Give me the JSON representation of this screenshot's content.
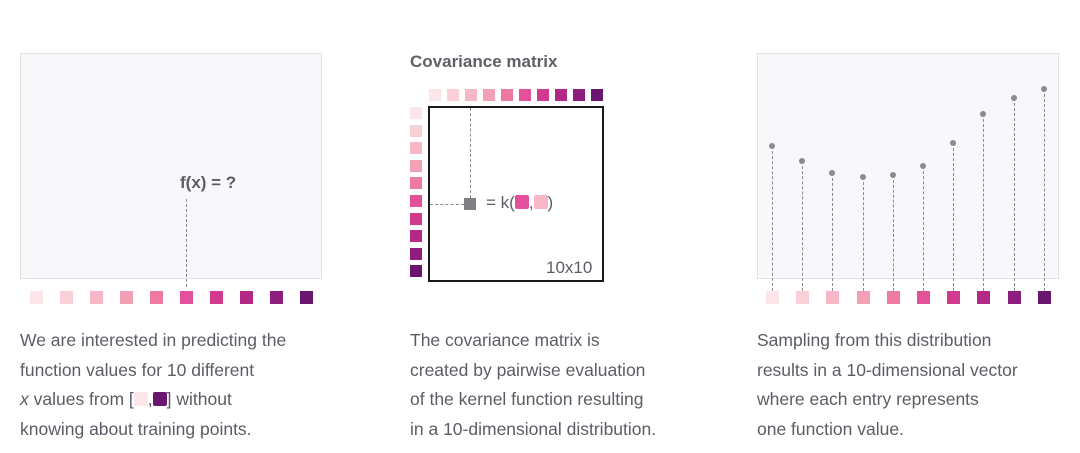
{
  "colors": [
    "#fde6ea",
    "#f9d0d8",
    "#f6b8c6",
    "#f2a0b6",
    "#ec7aa2",
    "#e2519a",
    "#d03a8f",
    "#b42886",
    "#8e1d7e",
    "#6a166e"
  ],
  "left_panel": {
    "label": "f(x) = ?",
    "caption": {
      "line1": "We are interested in predicting the",
      "line2": "function values for 10 different",
      "line3_x": "x",
      "line3_a": " values from [",
      "line3_comma": ",",
      "line3_b": "] without",
      "line4": "knowing about training points."
    }
  },
  "middle_panel": {
    "title": "Covariance matrix",
    "kernel_prefix": "= k(",
    "kernel_comma": ",",
    "kernel_suffix": ")",
    "matrix_size": "10x10",
    "caption": {
      "line1": "The covariance matrix is",
      "line2": "created by pairwise evaluation",
      "line3": "of the kernel function resulting",
      "line4": "in a 10-dimensional distribution."
    }
  },
  "right_panel": {
    "samples": [
      0.59,
      0.52,
      0.47,
      0.45,
      0.46,
      0.5,
      0.6,
      0.73,
      0.8,
      0.84
    ],
    "caption": {
      "line1": "Sampling from this distribution",
      "line2": "results in a 10-dimensional vector",
      "line3": "where each entry represents",
      "line4": "one function value."
    }
  }
}
